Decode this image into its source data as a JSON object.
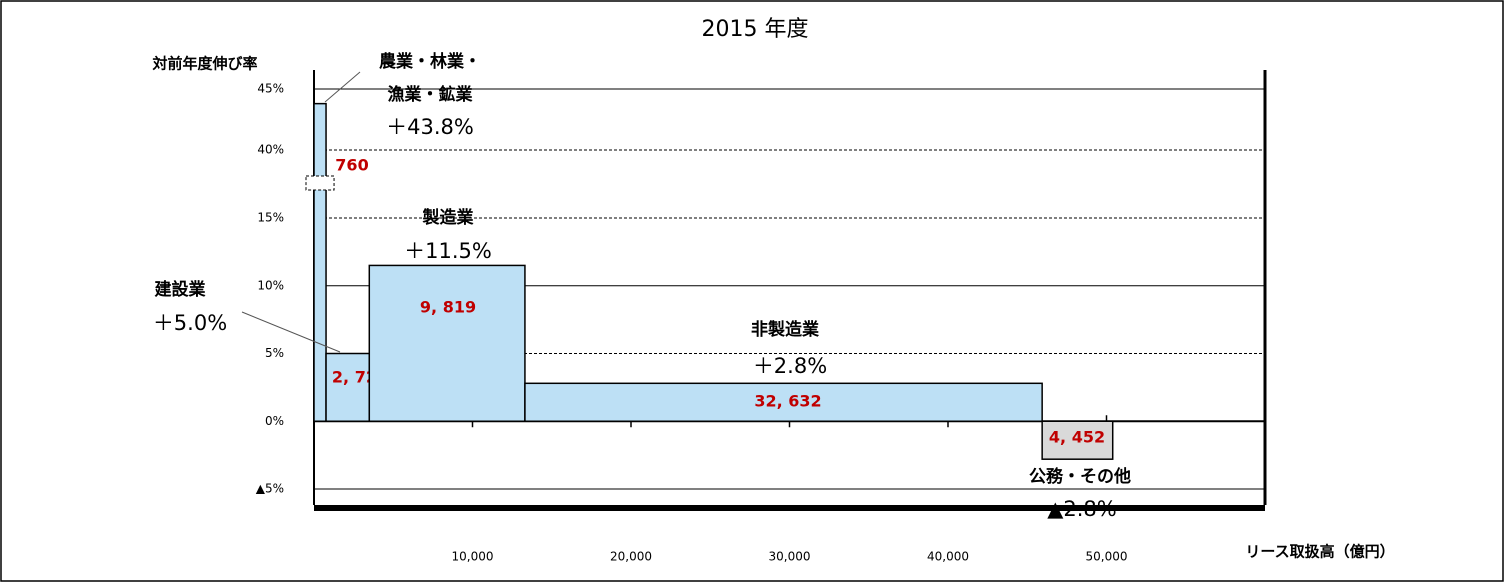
{
  "chart_data": {
    "type": "variwide-bar",
    "title": "2015 年度",
    "y_label": "対前年度伸び率",
    "x_label": "リース取扱高（億円）",
    "categories": [
      [
        "農業・林業・",
        "漁業・鉱業"
      ],
      [
        "建設業"
      ],
      [
        "製造業"
      ],
      [
        "非製造業"
      ],
      [
        "公務・その他"
      ]
    ],
    "values": [
      43.8,
      5.0,
      11.5,
      2.8,
      -2.8
    ],
    "value_labels": [
      "＋43.8%",
      "＋5.0%",
      "＋11.5%",
      "＋2.8%",
      "▲2.8%"
    ],
    "widths": [
      760,
      2729,
      9819,
      32632,
      4452
    ],
    "width_labels": [
      "760",
      "2, 729",
      "9, 819",
      "32, 632",
      "4, 452"
    ],
    "colors": [
      "#bde0f5",
      "#bde0f5",
      "#bde0f5",
      "#bde0f5",
      "#d9d9d9"
    ],
    "xlim": [
      0,
      60000
    ],
    "xticks": [
      {
        "value": 10000,
        "label": "10,000"
      },
      {
        "value": 20000,
        "label": "20,000"
      },
      {
        "value": 30000,
        "label": "30,000"
      },
      {
        "value": 40000,
        "label": "40,000"
      },
      {
        "value": 50000,
        "label": "50,000"
      }
    ],
    "ylim": [
      -5,
      45
    ],
    "y_break": [
      15,
      40
    ],
    "yticks": [
      {
        "value": -5,
        "label": "▲5%"
      },
      {
        "value": 0,
        "label": "0%"
      },
      {
        "value": 5,
        "label": "5%"
      },
      {
        "value": 10,
        "label": "10%"
      },
      {
        "value": 15,
        "label": "15%"
      },
      {
        "value": 40,
        "label": "40%"
      },
      {
        "value": 45,
        "label": "45%"
      }
    ],
    "grid": true
  }
}
